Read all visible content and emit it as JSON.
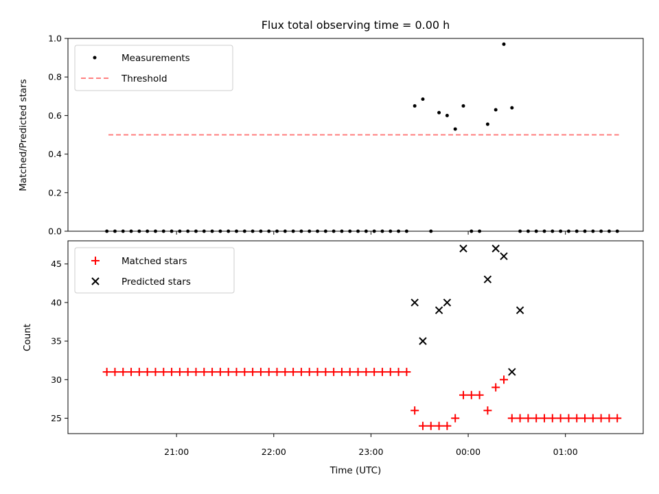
{
  "title": "Flux total observing time = 0.00 h",
  "colors": {
    "measurement": "#000000",
    "threshold": "#ff7f7f",
    "matched": "#ff0000",
    "predicted": "#000000"
  },
  "chart_data": [
    {
      "type": "scatter",
      "ylabel": "Matched/Predicted stars",
      "ylim": [
        0,
        1.0
      ],
      "yticks": [
        "0.0",
        "0.2",
        "0.4",
        "0.6",
        "0.8",
        "1.0"
      ],
      "legend": {
        "placement": "top-left",
        "entries": [
          "Measurements",
          "Threshold"
        ]
      },
      "threshold": {
        "name": "Threshold",
        "value": 0.5,
        "x_range": [
          "20:18",
          "01:33"
        ]
      },
      "series": [
        {
          "name": "Measurements",
          "x": [
            "20:17",
            "20:22",
            "20:27",
            "20:32",
            "20:37",
            "20:42",
            "20:47",
            "20:52",
            "20:57",
            "21:02",
            "21:07",
            "21:12",
            "21:17",
            "21:22",
            "21:27",
            "21:32",
            "21:37",
            "21:42",
            "21:47",
            "21:52",
            "21:57",
            "22:02",
            "22:07",
            "22:12",
            "22:17",
            "22:22",
            "22:27",
            "22:32",
            "22:37",
            "22:42",
            "22:47",
            "22:52",
            "22:57",
            "23:02",
            "23:07",
            "23:12",
            "23:17",
            "23:22",
            "23:27",
            "23:32",
            "23:37",
            "23:42",
            "23:47",
            "23:52",
            "23:57",
            "00:02",
            "00:07",
            "00:12",
            "00:17",
            "00:22",
            "00:27",
            "00:32",
            "00:37",
            "00:42",
            "00:47",
            "00:52",
            "00:57",
            "01:02",
            "01:07",
            "01:12",
            "01:17",
            "01:22",
            "01:27",
            "01:32"
          ],
          "y": [
            0,
            0,
            0,
            0,
            0,
            0,
            0,
            0,
            0,
            0,
            0,
            0,
            0,
            0,
            0,
            0,
            0,
            0,
            0,
            0,
            0,
            0,
            0,
            0,
            0,
            0,
            0,
            0,
            0,
            0,
            0,
            0,
            0,
            0,
            0,
            0,
            0,
            0,
            0.65,
            0.685,
            0,
            0.615,
            0.6,
            0.53,
            0.65,
            0,
            0,
            0.555,
            0.63,
            0.97,
            0.64,
            0,
            0,
            0,
            0,
            0,
            0,
            0,
            0,
            0,
            0,
            0,
            0,
            0
          ]
        }
      ]
    },
    {
      "type": "scatter",
      "xlabel": "Time (UTC)",
      "ylabel": "Count",
      "ylim": [
        23,
        48
      ],
      "yticks": [
        "25",
        "30",
        "35",
        "40",
        "45"
      ],
      "xticks": [
        "21:00",
        "22:00",
        "23:00",
        "00:00",
        "01:00"
      ],
      "legend": {
        "placement": "top-left",
        "entries": [
          "Matched stars",
          "Predicted stars"
        ]
      },
      "series": [
        {
          "name": "Matched stars",
          "x": [
            "20:17",
            "20:22",
            "20:27",
            "20:32",
            "20:37",
            "20:42",
            "20:47",
            "20:52",
            "20:57",
            "21:02",
            "21:07",
            "21:12",
            "21:17",
            "21:22",
            "21:27",
            "21:32",
            "21:37",
            "21:42",
            "21:47",
            "21:52",
            "21:57",
            "22:02",
            "22:07",
            "22:12",
            "22:17",
            "22:22",
            "22:27",
            "22:32",
            "22:37",
            "22:42",
            "22:47",
            "22:52",
            "22:57",
            "23:02",
            "23:07",
            "23:12",
            "23:17",
            "23:22",
            "23:27",
            "23:32",
            "23:37",
            "23:42",
            "23:47",
            "23:52",
            "23:57",
            "00:02",
            "00:07",
            "00:12",
            "00:17",
            "00:22",
            "00:27",
            "00:32",
            "00:37",
            "00:42",
            "00:47",
            "00:52",
            "00:57",
            "01:02",
            "01:07",
            "01:12",
            "01:17",
            "01:22",
            "01:27",
            "01:32"
          ],
          "y": [
            31,
            31,
            31,
            31,
            31,
            31,
            31,
            31,
            31,
            31,
            31,
            31,
            31,
            31,
            31,
            31,
            31,
            31,
            31,
            31,
            31,
            31,
            31,
            31,
            31,
            31,
            31,
            31,
            31,
            31,
            31,
            31,
            31,
            31,
            31,
            31,
            31,
            31,
            26,
            24,
            24,
            24,
            24,
            25,
            28,
            28,
            28,
            26,
            29,
            30,
            25,
            25,
            25,
            25,
            25,
            25,
            25,
            25,
            25,
            25,
            25,
            25,
            25,
            25
          ]
        },
        {
          "name": "Predicted stars",
          "x": [
            "23:27",
            "23:32",
            "23:42",
            "23:47",
            "23:57",
            "00:12",
            "00:17",
            "00:22",
            "00:27",
            "00:32"
          ],
          "y": [
            40,
            35,
            39,
            40,
            47,
            43,
            47,
            46,
            31,
            39
          ]
        }
      ]
    }
  ]
}
